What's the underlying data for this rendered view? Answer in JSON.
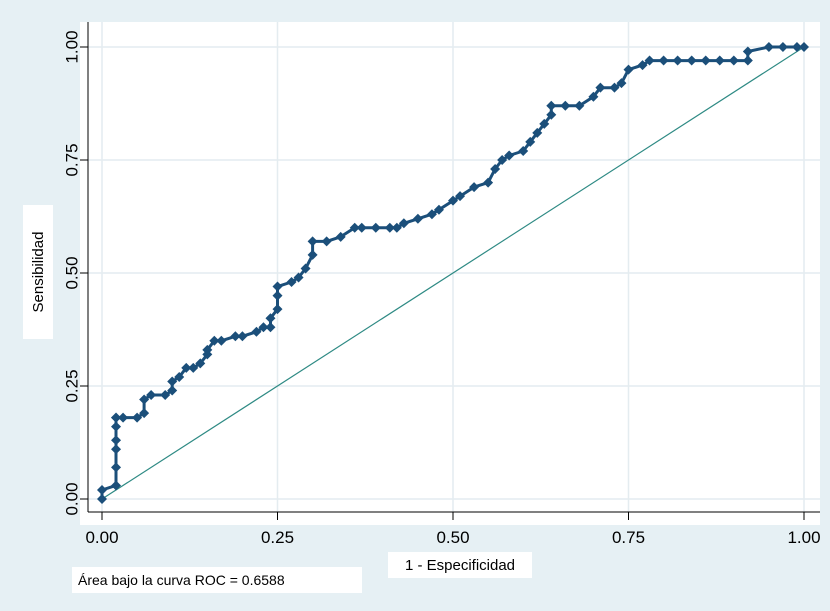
{
  "chart_data": {
    "type": "line",
    "xlabel": "1 - Especificidad",
    "ylabel": "Sensibilidad",
    "note": "Área bajo la curva ROC = 0.6588",
    "xlim": [
      0,
      1
    ],
    "ylim": [
      0,
      1
    ],
    "x_ticks": [
      "0.00",
      "0.25",
      "0.50",
      "0.75",
      "1.00"
    ],
    "y_ticks": [
      "0.00",
      "0.25",
      "0.50",
      "0.75",
      "1.00"
    ],
    "grid": true,
    "colors": {
      "background": "#e6f0f4",
      "plot_background": "#ffffff",
      "grid": "#e4ecf0",
      "roc_curve": "#1b4f7a",
      "reference_line": "#2e8a84"
    },
    "series": [
      {
        "x": [
          0.0,
          0.0,
          0.02,
          0.02,
          0.02,
          0.02,
          0.02,
          0.02,
          0.02,
          0.03,
          0.05,
          0.06,
          0.06,
          0.07,
          0.09,
          0.1,
          0.1,
          0.11,
          0.12,
          0.13,
          0.14,
          0.15,
          0.15,
          0.16,
          0.17,
          0.19,
          0.2,
          0.22,
          0.23,
          0.24,
          0.24,
          0.25,
          0.25,
          0.25,
          0.27,
          0.28,
          0.29,
          0.3,
          0.3,
          0.32,
          0.34,
          0.36,
          0.37,
          0.39,
          0.41,
          0.42,
          0.43,
          0.45,
          0.47,
          0.48,
          0.5,
          0.51,
          0.53,
          0.55,
          0.56,
          0.57,
          0.58,
          0.6,
          0.61,
          0.62,
          0.63,
          0.64,
          0.64,
          0.66,
          0.68,
          0.7,
          0.71,
          0.73,
          0.74,
          0.75,
          0.77,
          0.78,
          0.8,
          0.82,
          0.84,
          0.86,
          0.88,
          0.9,
          0.92,
          0.92,
          0.95,
          0.97,
          0.99,
          1.0
        ],
        "y": [
          0.0,
          0.02,
          0.03,
          0.07,
          0.11,
          0.13,
          0.16,
          0.18,
          0.18,
          0.18,
          0.18,
          0.19,
          0.22,
          0.23,
          0.23,
          0.24,
          0.26,
          0.27,
          0.29,
          0.29,
          0.3,
          0.32,
          0.33,
          0.35,
          0.35,
          0.36,
          0.36,
          0.37,
          0.38,
          0.38,
          0.4,
          0.42,
          0.45,
          0.47,
          0.48,
          0.49,
          0.51,
          0.54,
          0.57,
          0.57,
          0.58,
          0.6,
          0.6,
          0.6,
          0.6,
          0.6,
          0.61,
          0.62,
          0.63,
          0.64,
          0.66,
          0.67,
          0.69,
          0.7,
          0.73,
          0.75,
          0.76,
          0.77,
          0.79,
          0.81,
          0.83,
          0.85,
          0.87,
          0.87,
          0.87,
          0.89,
          0.91,
          0.91,
          0.92,
          0.95,
          0.96,
          0.97,
          0.97,
          0.97,
          0.97,
          0.97,
          0.97,
          0.97,
          0.97,
          0.99,
          1.0,
          1.0,
          1.0,
          1.0
        ]
      },
      {
        "x": [
          0,
          1
        ],
        "y": [
          0,
          1
        ]
      }
    ]
  }
}
